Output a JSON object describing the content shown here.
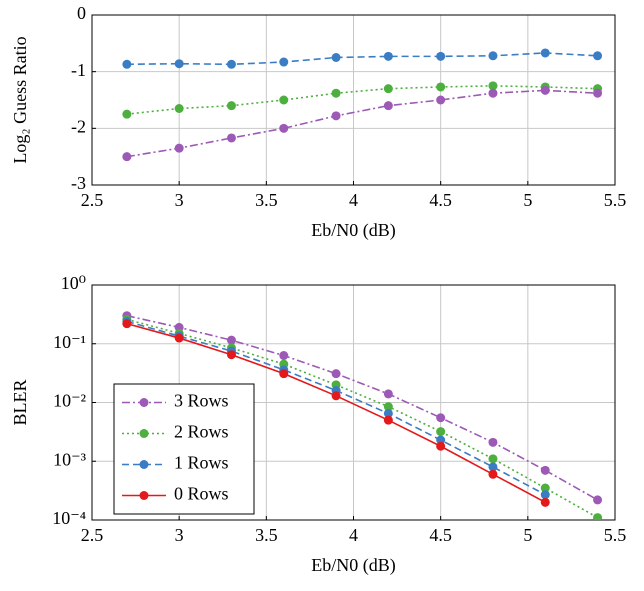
{
  "chart_data": [
    {
      "type": "line",
      "ylabel": "Log₂ Guess Ratio",
      "xlabel": "Eb/N0 (dB)",
      "x": [
        2.7,
        3.0,
        3.3,
        3.6,
        3.9,
        4.2,
        4.5,
        4.8,
        5.1,
        5.4
      ],
      "xlim": [
        2.5,
        5.5
      ],
      "xticks": [
        2.5,
        3,
        3.5,
        4,
        4.5,
        5,
        5.5
      ],
      "ylim": [
        -3,
        0
      ],
      "yticks": [
        -3,
        -2,
        -1,
        0
      ],
      "grid": true,
      "log_y": false,
      "series": [
        {
          "color": "#3a7dc4",
          "linestyle": "dashed",
          "values": [
            -0.87,
            -0.86,
            -0.87,
            -0.83,
            -0.75,
            -0.73,
            -0.73,
            -0.72,
            -0.67,
            -0.72
          ]
        },
        {
          "color": "#4caf3e",
          "linestyle": "dotted",
          "values": [
            -1.75,
            -1.65,
            -1.6,
            -1.5,
            -1.38,
            -1.3,
            -1.27,
            -1.25,
            -1.27,
            -1.3
          ]
        },
        {
          "color": "#9c59b5",
          "linestyle": "dashdot",
          "values": [
            -2.5,
            -2.35,
            -2.17,
            -2.0,
            -1.78,
            -1.6,
            -1.5,
            -1.38,
            -1.33,
            -1.38
          ]
        }
      ]
    },
    {
      "type": "line",
      "ylabel": "BLER",
      "xlabel": "Eb/N0 (dB)",
      "x": [
        2.7,
        3.0,
        3.3,
        3.6,
        3.9,
        4.2,
        4.5,
        4.8,
        5.1,
        5.4
      ],
      "xlim": [
        2.5,
        5.5
      ],
      "xticks": [
        2.5,
        3,
        3.5,
        4,
        4.5,
        5,
        5.5
      ],
      "ylim": [
        0.0001,
        1
      ],
      "yticks": [
        {
          "value": 0.0001,
          "label": "10⁻⁴"
        },
        {
          "value": 0.001,
          "label": "10⁻³"
        },
        {
          "value": 0.01,
          "label": "10⁻²"
        },
        {
          "value": 0.1,
          "label": "10⁻¹"
        },
        {
          "value": 1,
          "label": "10⁰"
        }
      ],
      "grid": true,
      "log_y": true,
      "legend": "lower-left",
      "series": [
        {
          "name": "3 Rows",
          "color": "#9c59b5",
          "linestyle": "dashdot",
          "values": [
            0.3,
            0.19,
            0.115,
            0.063,
            0.031,
            0.014,
            0.0055,
            0.0021,
            0.0007,
            0.00022
          ]
        },
        {
          "name": "2 Rows",
          "color": "#4caf3e",
          "linestyle": "dotted",
          "values": [
            0.26,
            0.15,
            0.085,
            0.045,
            0.02,
            0.0085,
            0.0032,
            0.0011,
            0.00035,
            0.00011
          ]
        },
        {
          "name": "1 Rows",
          "color": "#3a7dc4",
          "linestyle": "dashed",
          "values": [
            0.24,
            0.135,
            0.075,
            0.036,
            0.016,
            0.0065,
            0.0023,
            0.0008,
            0.00027,
            null
          ]
        },
        {
          "name": "0 Rows",
          "color": "#e3191c",
          "linestyle": "solid",
          "values": [
            0.22,
            0.125,
            0.065,
            0.031,
            0.013,
            0.005,
            0.0018,
            0.0006,
            0.0002,
            null
          ]
        }
      ]
    }
  ]
}
